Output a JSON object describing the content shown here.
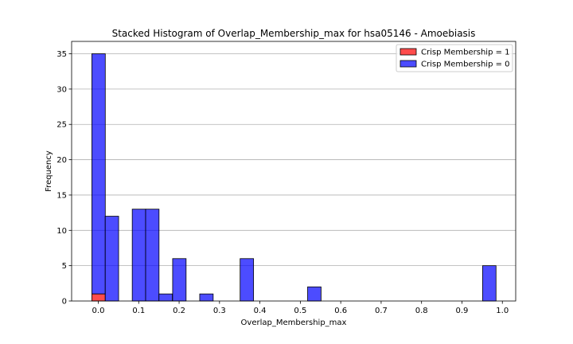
{
  "chart_data": {
    "type": "bar",
    "stacked": true,
    "title": "Stacked Histogram of Overlap_Membership_max for hsa05146 - Amoebiasis",
    "xlabel": "Overlap_Membership_max",
    "ylabel": "Frequency",
    "xlim": [
      -0.066,
      1.033
    ],
    "ylim": [
      0,
      36.75
    ],
    "xticks": [
      0.0,
      0.1,
      0.2,
      0.3,
      0.4,
      0.5,
      0.6,
      0.7,
      0.8,
      0.9,
      1.0
    ],
    "xtick_labels": [
      "0.0",
      "0.1",
      "0.2",
      "0.3",
      "0.4",
      "0.5",
      "0.6",
      "0.7",
      "0.8",
      "0.9",
      "1.0"
    ],
    "yticks": [
      0,
      5,
      10,
      15,
      20,
      25,
      30,
      35
    ],
    "ytick_labels": [
      "0",
      "5",
      "10",
      "15",
      "20",
      "25",
      "30",
      "35"
    ],
    "grid": "horizontal",
    "legend_position": "top-right",
    "bin_width": 0.0333,
    "series": [
      {
        "name": "Crisp Membership = 1",
        "color": "#ff0000",
        "bins": [
          {
            "start": -0.016,
            "count": 1
          }
        ]
      },
      {
        "name": "Crisp Membership = 0",
        "color": "#0000ff",
        "bins": [
          {
            "start": -0.016,
            "count": 34
          },
          {
            "start": 0.017,
            "count": 12
          },
          {
            "start": 0.084,
            "count": 13
          },
          {
            "start": 0.117,
            "count": 13
          },
          {
            "start": 0.15,
            "count": 1
          },
          {
            "start": 0.184,
            "count": 6
          },
          {
            "start": 0.251,
            "count": 1
          },
          {
            "start": 0.351,
            "count": 6
          },
          {
            "start": 0.518,
            "count": 2
          },
          {
            "start": 0.951,
            "count": 5
          }
        ]
      }
    ]
  }
}
